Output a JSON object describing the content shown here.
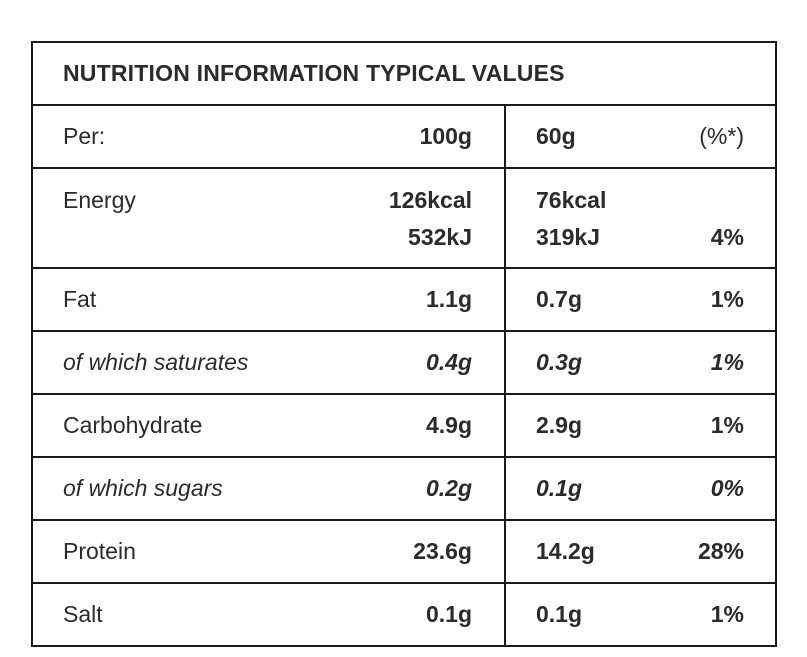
{
  "title": "NUTRITION INFORMATION TYPICAL VALUES",
  "header": {
    "label": "Per:",
    "col_100g": "100g",
    "col_60g": "60g",
    "col_pct": "(%*)"
  },
  "energy": {
    "label": "Energy",
    "kcal_100g": "126kcal",
    "kj_100g": "532kJ",
    "kcal_60g": "76kcal",
    "kj_60g": "319kJ",
    "pct": "4%"
  },
  "rows": [
    {
      "label": "Fat",
      "v100": "1.1g",
      "v60": "0.7g",
      "pct": "1%"
    },
    {
      "label": "of which saturates",
      "v100": "0.4g",
      "v60": "0.3g",
      "pct": "1%"
    },
    {
      "label": "Carbohydrate",
      "v100": "4.9g",
      "v60": "2.9g",
      "pct": "1%"
    },
    {
      "label": "of which sugars",
      "v100": "0.2g",
      "v60": "0.1g",
      "pct": "0%"
    },
    {
      "label": "Protein",
      "v100": "23.6g",
      "v60": "14.2g",
      "pct": "28%"
    },
    {
      "label": "Salt",
      "v100": "0.1g",
      "v60": "0.1g",
      "pct": "1%"
    }
  ]
}
